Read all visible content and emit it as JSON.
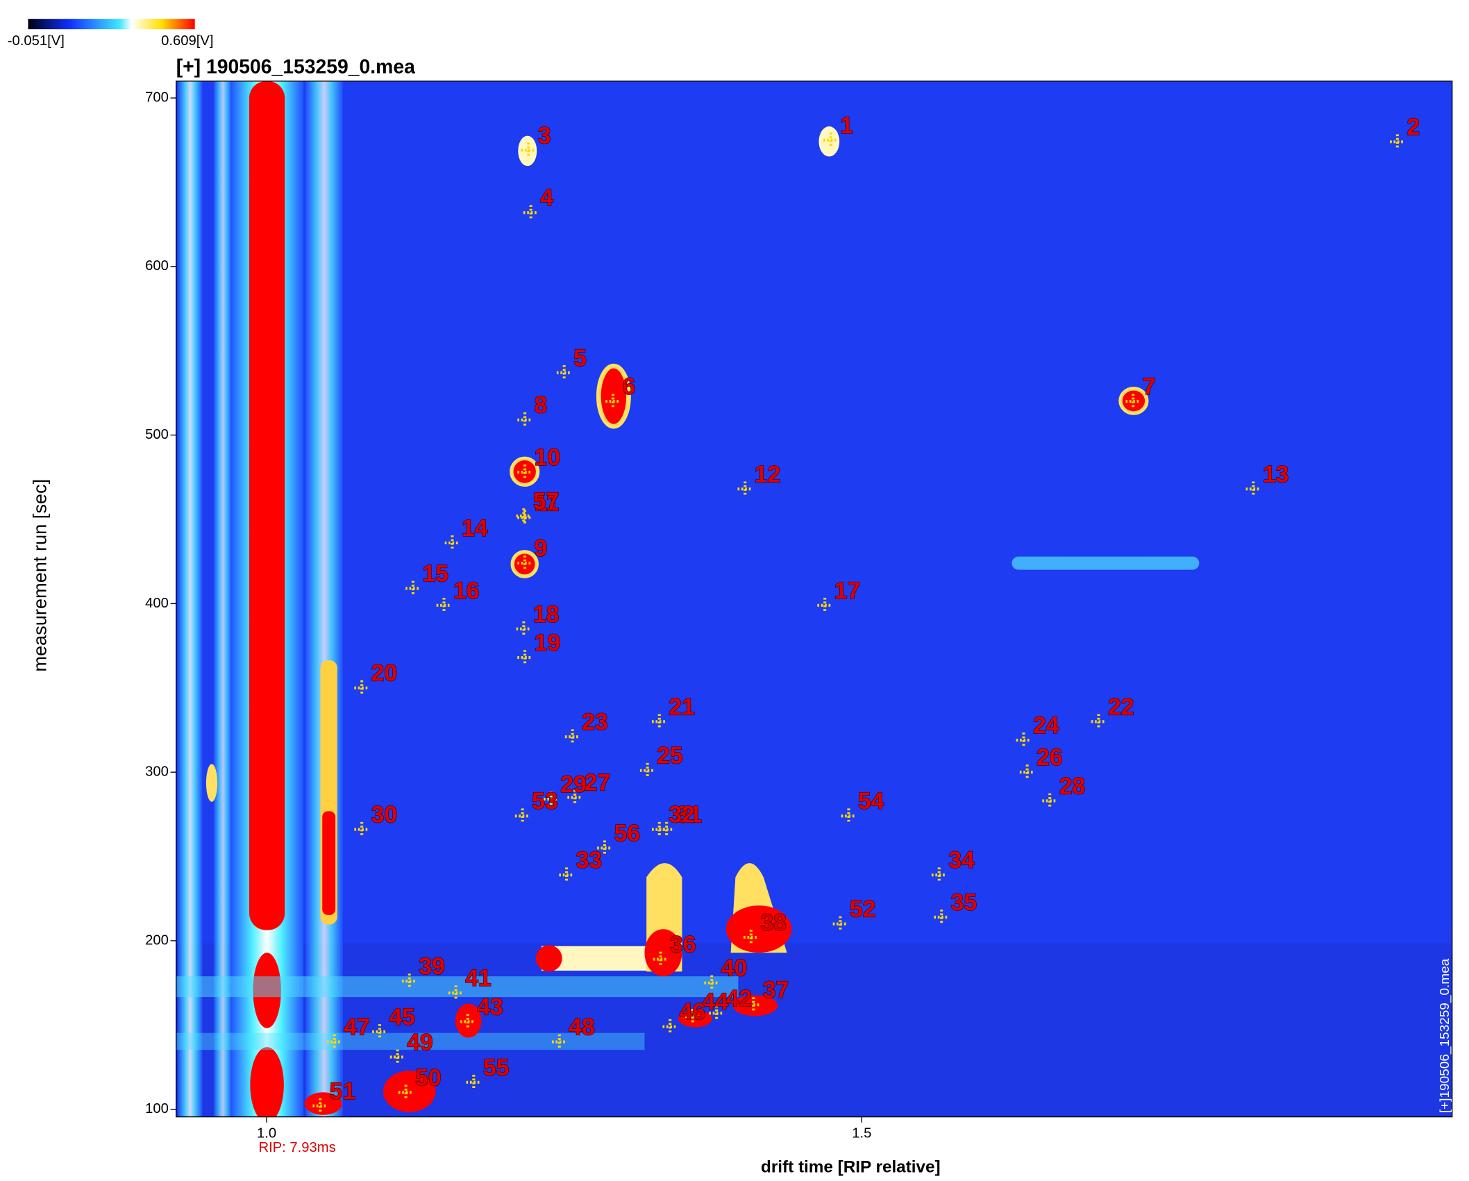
{
  "chart_data": {
    "type": "scatter",
    "title": "[+] 190506_153259_0.mea",
    "xlabel": "drift time [RIP relative]",
    "ylabel": "measurement run [sec]",
    "x_annotation": "RIP: 7.93ms",
    "side_note": "[+]190506_153259_0.mea",
    "colorbar": {
      "min_label": "-0.051[V]",
      "max_label": "0.609[V]"
    },
    "xlim": [
      0.924,
      1.996
    ],
    "ylim": [
      95.5,
      710
    ],
    "xticks": [
      {
        "value": 1,
        "label": "1.0"
      },
      {
        "value": 1.5,
        "label": "1.5"
      }
    ],
    "yticks": [
      100,
      200,
      300,
      400,
      500,
      600,
      700
    ],
    "point_labels": [
      "1",
      "2",
      "3",
      "4",
      "5",
      "6",
      "7",
      "8",
      "9",
      "10",
      "11",
      "12",
      "13",
      "14",
      "15",
      "16",
      "17",
      "18",
      "19",
      "20",
      "21",
      "22",
      "23",
      "24",
      "25",
      "26",
      "27",
      "28",
      "29",
      "30",
      "31",
      "32",
      "33",
      "34",
      "35",
      "36",
      "37",
      "38",
      "39",
      "40",
      "41",
      "42",
      "43",
      "44",
      "45",
      "46",
      "47",
      "48",
      "49",
      "50",
      "51",
      "52",
      "53",
      "54",
      "55",
      "56",
      "57"
    ],
    "x": [
      1.474,
      1.95,
      1.22,
      1.222,
      1.25,
      1.291,
      1.728,
      1.217,
      1.217,
      1.217,
      1.217,
      1.402,
      1.829,
      1.156,
      1.123,
      1.149,
      1.469,
      1.216,
      1.217,
      1.08,
      1.33,
      1.699,
      1.257,
      1.636,
      1.32,
      1.639,
      1.259,
      1.658,
      1.239,
      1.08,
      1.336,
      1.33,
      1.252,
      1.565,
      1.567,
      1.331,
      1.409,
      1.407,
      1.12,
      1.374,
      1.159,
      1.378,
      1.169,
      1.358,
      1.095,
      1.339,
      1.057,
      1.246,
      1.11,
      1.117,
      1.045,
      1.482,
      1.215,
      1.489,
      1.174,
      1.284,
      1.216
    ],
    "values": [
      675,
      674,
      669,
      632,
      537,
      520,
      520,
      509,
      424,
      478,
      451,
      468,
      468,
      436,
      409,
      399,
      399,
      385,
      368,
      350,
      330,
      330,
      321,
      319,
      301,
      300,
      285,
      283,
      284,
      266,
      266,
      266,
      239,
      239,
      214,
      189,
      162,
      202,
      176,
      175,
      169,
      157,
      152,
      155,
      146,
      149,
      140,
      140,
      131,
      110,
      102,
      210,
      274,
      274,
      116,
      255,
      452
    ],
    "marker_color": "#ffd800",
    "label_color": "#e00000"
  }
}
